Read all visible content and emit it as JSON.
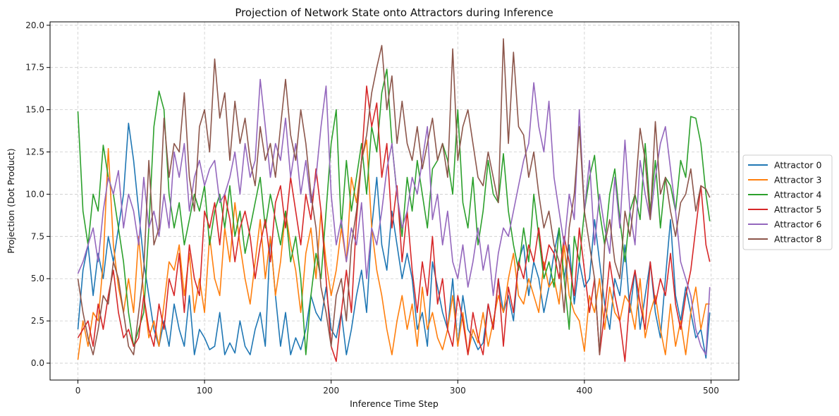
{
  "chart_data": {
    "type": "line",
    "title": "Projection of Network State onto Attractors during Inference",
    "xlabel": "Inference Time Step",
    "ylabel": "Projection (Dot Product)",
    "xlim": [
      -22,
      522
    ],
    "ylim": [
      -1.0,
      20.2
    ],
    "xticks": [
      0,
      100,
      200,
      300,
      400,
      500
    ],
    "yticks": [
      0.0,
      2.5,
      5.0,
      7.5,
      10.0,
      12.5,
      15.0,
      17.5,
      20.0
    ],
    "xtick_labels": [
      "0",
      "100",
      "200",
      "300",
      "400",
      "500"
    ],
    "ytick_labels": [
      "0.0",
      "2.5",
      "5.0",
      "7.5",
      "10.0",
      "12.5",
      "15.0",
      "17.5",
      "20.0"
    ],
    "grid": true,
    "grid_style": "dashed",
    "legend_position": "right, outside plot",
    "x_points": [
      0,
      4,
      8,
      12,
      16,
      20,
      24,
      28,
      32,
      36,
      40,
      44,
      48,
      52,
      56,
      60,
      64,
      68,
      72,
      76,
      80,
      84,
      88,
      92,
      96,
      100,
      104,
      108,
      112,
      116,
      120,
      124,
      128,
      132,
      136,
      140,
      144,
      148,
      152,
      156,
      160,
      164,
      168,
      172,
      176,
      180,
      184,
      188,
      192,
      196,
      200,
      204,
      208,
      212,
      216,
      220,
      224,
      228,
      232,
      236,
      240,
      244,
      248,
      252,
      256,
      260,
      264,
      268,
      272,
      276,
      280,
      284,
      288,
      292,
      296,
      300,
      304,
      308,
      312,
      316,
      320,
      324,
      328,
      332,
      336,
      340,
      344,
      348,
      352,
      356,
      360,
      364,
      368,
      372,
      376,
      380,
      384,
      388,
      392,
      396,
      400,
      404,
      408,
      412,
      416,
      420,
      424,
      428,
      432,
      436,
      440,
      444,
      448,
      452,
      456,
      460,
      464,
      468,
      472,
      476,
      480,
      484,
      488,
      492,
      496,
      499
    ],
    "series": [
      {
        "name": "Attractor 0",
        "color": "#1f77b4",
        "values": [
          2.0,
          5.5,
          7.0,
          4.0,
          6.5,
          5.0,
          7.5,
          6.0,
          8.0,
          10.0,
          14.2,
          12.0,
          9.0,
          6.0,
          4.0,
          2.0,
          1.0,
          2.5,
          1.0,
          3.5,
          2.0,
          1.0,
          4.0,
          0.5,
          2.0,
          1.5,
          0.8,
          1.0,
          3.0,
          0.5,
          1.2,
          0.6,
          2.5,
          1.0,
          0.5,
          2.0,
          3.0,
          1.0,
          7.5,
          4.0,
          1.0,
          3.0,
          0.5,
          1.5,
          0.8,
          2.0,
          4.0,
          3.0,
          2.5,
          4.5,
          2.0,
          1.5,
          3.0,
          0.5,
          2.0,
          4.0,
          5.5,
          3.0,
          8.0,
          11.0,
          7.0,
          5.5,
          9.0,
          7.0,
          5.0,
          6.5,
          5.0,
          2.0,
          3.0,
          1.0,
          6.0,
          4.5,
          3.0,
          2.0,
          5.0,
          1.0,
          4.0,
          2.0,
          1.5,
          0.8,
          1.2,
          3.5,
          2.0,
          5.0,
          3.0,
          4.0,
          2.5,
          6.0,
          7.0,
          4.0,
          6.0,
          5.0,
          3.0,
          4.5,
          6.5,
          8.0,
          5.0,
          7.0,
          3.5,
          6.0,
          4.5,
          5.0,
          8.5,
          6.0,
          3.5,
          2.0,
          5.0,
          4.0,
          7.0,
          3.0,
          5.5,
          2.0,
          4.0,
          6.0,
          3.0,
          1.5,
          5.0,
          8.5,
          4.0,
          2.5,
          4.5,
          3.0,
          1.5,
          2.0,
          0.3,
          3.0
        ]
      },
      {
        "name": "Attractor 3",
        "color": "#ff7f0e",
        "values": [
          0.2,
          2.5,
          1.0,
          3.0,
          2.5,
          6.0,
          12.7,
          7.0,
          4.5,
          3.0,
          5.0,
          3.0,
          7.5,
          4.0,
          1.5,
          2.5,
          1.0,
          3.5,
          6.0,
          5.5,
          7.0,
          4.0,
          6.5,
          3.0,
          5.0,
          3.0,
          7.5,
          5.0,
          4.0,
          8.0,
          6.0,
          9.5,
          7.0,
          5.0,
          3.5,
          6.0,
          8.5,
          5.0,
          7.5,
          4.0,
          6.0,
          9.0,
          7.0,
          5.5,
          3.0,
          6.5,
          8.0,
          5.0,
          9.0,
          6.0,
          4.0,
          5.5,
          8.0,
          6.0,
          11.0,
          9.5,
          12.0,
          13.2,
          8.0,
          5.5,
          4.0,
          2.0,
          0.5,
          2.5,
          4.0,
          2.0,
          3.5,
          1.0,
          4.5,
          2.0,
          3.0,
          1.5,
          0.8,
          2.0,
          4.0,
          1.0,
          3.0,
          0.5,
          2.0,
          1.2,
          3.0,
          1.0,
          2.5,
          4.0,
          3.0,
          5.0,
          6.5,
          4.0,
          3.5,
          5.0,
          4.0,
          3.0,
          6.0,
          4.5,
          5.0,
          3.5,
          7.0,
          4.0,
          3.0,
          2.5,
          0.7,
          4.0,
          3.0,
          5.0,
          2.0,
          4.5,
          3.0,
          2.5,
          4.0,
          3.5,
          2.0,
          5.0,
          1.5,
          3.0,
          4.0,
          2.0,
          0.5,
          3.5,
          1.0,
          2.5,
          0.5,
          3.0,
          4.5,
          2.0,
          3.5,
          3.5
        ]
      },
      {
        "name": "Attractor 4",
        "color": "#2ca02c",
        "values": [
          14.9,
          9.0,
          7.0,
          10.0,
          9.0,
          12.9,
          11.0,
          10.0,
          8.0,
          6.0,
          3.0,
          1.0,
          2.0,
          3.0,
          8.0,
          14.0,
          16.1,
          15.0,
          10.0,
          8.0,
          9.5,
          7.0,
          8.5,
          10.0,
          9.0,
          10.5,
          7.0,
          9.0,
          10.0,
          8.0,
          10.5,
          7.5,
          9.0,
          6.5,
          8.0,
          9.5,
          11.0,
          8.0,
          10.0,
          8.5,
          7.0,
          9.0,
          6.0,
          7.5,
          5.0,
          0.5,
          4.0,
          6.5,
          5.0,
          9.0,
          13.0,
          15.0,
          8.0,
          12.0,
          9.0,
          11.0,
          13.0,
          10.0,
          14.0,
          12.5,
          16.0,
          17.4,
          13.0,
          10.0,
          7.5,
          11.0,
          9.0,
          12.0,
          10.0,
          8.0,
          11.5,
          12.0,
          13.0,
          12.0,
          10.0,
          15.0,
          9.5,
          8.0,
          11.0,
          7.0,
          9.0,
          12.0,
          10.0,
          9.5,
          12.4,
          9.0,
          7.0,
          5.5,
          8.0,
          6.0,
          10.0,
          7.5,
          5.0,
          6.0,
          4.5,
          8.0,
          5.0,
          2.0,
          7.5,
          6.0,
          9.0,
          11.0,
          12.3,
          9.0,
          7.0,
          10.0,
          11.5,
          8.5,
          6.0,
          9.0,
          10.0,
          8.5,
          13.0,
          9.0,
          12.0,
          8.0,
          11.0,
          10.5,
          9.0,
          12.0,
          11.0,
          14.6,
          14.5,
          13.0,
          10.0,
          8.4
        ]
      },
      {
        "name": "Attractor 5",
        "color": "#d62728",
        "values": [
          1.5,
          2.0,
          2.5,
          1.0,
          3.5,
          2.0,
          4.0,
          5.5,
          3.0,
          1.5,
          2.0,
          1.0,
          1.5,
          4.0,
          2.0,
          1.0,
          3.5,
          2.0,
          5.0,
          4.0,
          6.5,
          3.0,
          7.0,
          5.0,
          4.0,
          9.0,
          8.0,
          9.5,
          7.0,
          10.0,
          8.5,
          6.0,
          8.0,
          9.0,
          7.5,
          5.0,
          7.0,
          8.5,
          6.0,
          9.5,
          10.5,
          8.0,
          11.0,
          9.0,
          7.0,
          10.0,
          8.5,
          11.5,
          9.0,
          5.0,
          1.0,
          0.1,
          3.0,
          5.5,
          3.0,
          8.5,
          12.0,
          16.4,
          14.0,
          15.4,
          11.0,
          13.0,
          8.0,
          10.5,
          6.0,
          9.0,
          5.5,
          3.0,
          6.0,
          4.0,
          7.5,
          3.5,
          5.0,
          2.0,
          1.0,
          4.0,
          2.5,
          0.5,
          3.0,
          1.5,
          0.5,
          3.5,
          2.0,
          5.0,
          1.0,
          4.5,
          3.0,
          6.0,
          5.0,
          7.0,
          6.0,
          8.0,
          5.5,
          7.0,
          6.5,
          5.0,
          7.5,
          6.0,
          4.0,
          8.0,
          5.5,
          3.0,
          5.0,
          0.5,
          3.0,
          6.0,
          4.0,
          2.5,
          0.1,
          4.0,
          5.5,
          3.5,
          2.0,
          6.0,
          3.5,
          5.0,
          4.0,
          6.5,
          3.5,
          2.0,
          4.0,
          5.5,
          8.0,
          10.5,
          7.0,
          6.0
        ]
      },
      {
        "name": "Attractor 6",
        "color": "#9467bd",
        "values": [
          5.3,
          6.0,
          7.0,
          8.0,
          6.0,
          9.0,
          11.0,
          10.0,
          11.4,
          8.0,
          10.0,
          9.0,
          7.0,
          11.0,
          8.0,
          9.0,
          7.5,
          10.0,
          8.0,
          12.5,
          11.0,
          13.0,
          9.0,
          11.0,
          12.0,
          10.5,
          11.5,
          12.0,
          9.5,
          10.0,
          11.0,
          12.5,
          10.0,
          13.0,
          11.0,
          12.0,
          16.8,
          14.0,
          11.0,
          13.0,
          12.0,
          14.5,
          11.0,
          13.0,
          10.0,
          12.0,
          9.5,
          11.0,
          14.0,
          16.4,
          10.0,
          7.0,
          8.5,
          6.0,
          8.0,
          7.0,
          9.5,
          5.0,
          8.0,
          7.0,
          9.0,
          11.5,
          13.0,
          10.0,
          8.0,
          9.0,
          11.0,
          10.0,
          12.0,
          14.0,
          8.5,
          10.0,
          7.0,
          9.0,
          6.0,
          5.0,
          7.0,
          4.5,
          6.0,
          8.0,
          5.5,
          7.0,
          4.0,
          6.5,
          8.0,
          7.5,
          9.0,
          10.5,
          12.0,
          13.0,
          16.6,
          14.0,
          12.5,
          15.5,
          11.0,
          9.0,
          7.0,
          10.0,
          8.5,
          15.0,
          9.0,
          12.0,
          7.0,
          10.0,
          8.0,
          6.5,
          11.0,
          8.0,
          13.2,
          9.0,
          7.0,
          12.0,
          10.0,
          8.5,
          11.0,
          13.0,
          14.0,
          11.5,
          9.0,
          6.0,
          5.0,
          4.0,
          2.0,
          1.0,
          0.5,
          4.5
        ]
      },
      {
        "name": "Attractor 8",
        "color": "#8c564b",
        "values": [
          5.0,
          3.0,
          1.5,
          0.5,
          2.0,
          4.0,
          3.5,
          6.0,
          5.0,
          3.0,
          1.0,
          0.5,
          3.0,
          5.5,
          12.0,
          7.0,
          8.0,
          14.5,
          11.0,
          13.0,
          12.5,
          16.0,
          11.0,
          9.0,
          14.0,
          15.0,
          12.5,
          18.0,
          14.5,
          16.0,
          12.0,
          15.5,
          13.0,
          14.5,
          12.0,
          10.5,
          14.0,
          12.0,
          13.0,
          11.0,
          14.0,
          16.8,
          13.5,
          12.0,
          15.0,
          13.0,
          10.0,
          8.0,
          4.5,
          3.0,
          1.0,
          4.0,
          5.0,
          2.5,
          7.0,
          9.0,
          12.0,
          13.5,
          16.0,
          17.5,
          18.8,
          15.0,
          17.0,
          13.0,
          15.5,
          13.0,
          12.0,
          14.0,
          11.5,
          13.0,
          14.5,
          12.0,
          13.0,
          11.0,
          18.6,
          12.0,
          14.0,
          15.0,
          13.0,
          11.0,
          10.5,
          12.5,
          11.0,
          9.5,
          19.2,
          13.0,
          18.4,
          14.0,
          13.5,
          11.0,
          12.5,
          10.0,
          8.0,
          9.0,
          7.0,
          6.0,
          3.0,
          8.0,
          10.0,
          14.0,
          9.0,
          7.0,
          5.0,
          0.5,
          7.0,
          8.5,
          6.0,
          5.0,
          9.0,
          7.5,
          10.0,
          13.9,
          12.0,
          8.5,
          14.3,
          10.0,
          11.0,
          9.0,
          7.5,
          9.5,
          10.0,
          11.5,
          9.0,
          10.5,
          10.3,
          9.8
        ]
      }
    ]
  }
}
